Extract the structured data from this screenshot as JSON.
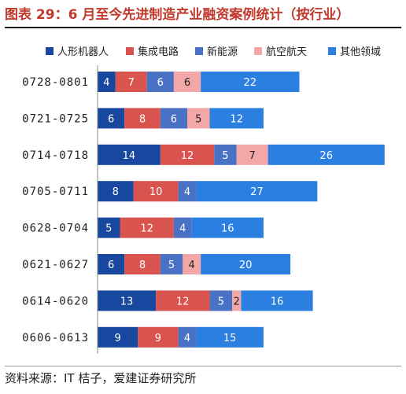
{
  "title": "图表 29：6 月至今先进制造产业融资案例统计（按行业）",
  "source": "资料来源：IT 桔子，爱建证券研究所",
  "chart_data": {
    "type": "bar",
    "orientation": "horizontal",
    "stacked": true,
    "categories": [
      "0728-0801",
      "0721-0725",
      "0714-0718",
      "0705-0711",
      "0628-0704",
      "0621-0627",
      "0614-0620",
      "0606-0613"
    ],
    "series": [
      {
        "name": "人形机器人",
        "color": "#17479e",
        "values": [
          4,
          6,
          14,
          8,
          5,
          6,
          13,
          9
        ]
      },
      {
        "name": "集成电路",
        "color": "#d9534f",
        "values": [
          7,
          8,
          12,
          10,
          12,
          8,
          12,
          9
        ]
      },
      {
        "name": "新能源",
        "color": "#4a72c4",
        "values": [
          6,
          6,
          5,
          4,
          4,
          5,
          5,
          4
        ]
      },
      {
        "name": "航空航天",
        "color": "#f3a7a7",
        "values": [
          6,
          5,
          7,
          0,
          0,
          4,
          2,
          0
        ]
      },
      {
        "name": "其他领域",
        "color": "#2b7fe0",
        "values": [
          22,
          12,
          26,
          27,
          16,
          20,
          16,
          15
        ]
      }
    ],
    "legend_position": "top",
    "grid": false
  }
}
